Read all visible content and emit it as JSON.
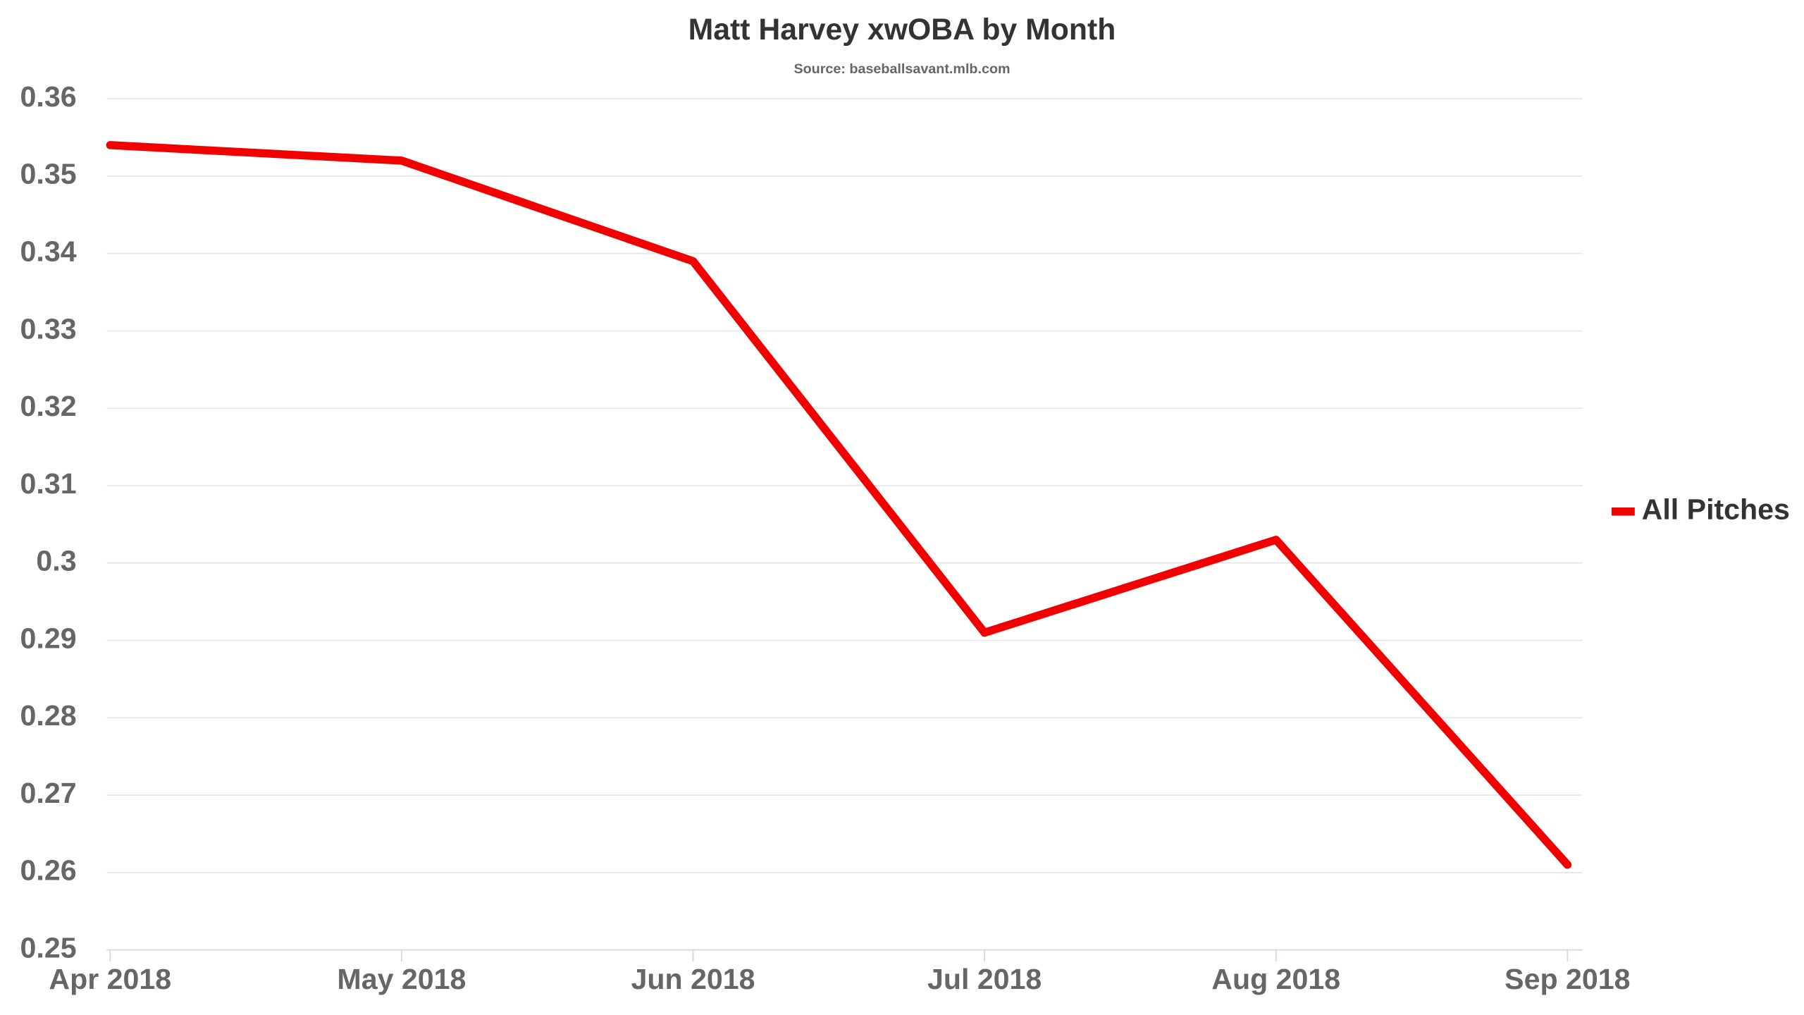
{
  "chart_data": {
    "type": "line",
    "title": "Matt Harvey xwOBA by Month",
    "subtitle": "Source: baseballsavant.mlb.com",
    "categories": [
      "Apr 2018",
      "May 2018",
      "Jun 2018",
      "Jul 2018",
      "Aug 2018",
      "Sep 2018"
    ],
    "series": [
      {
        "name": "All Pitches",
        "color": "#f20000",
        "values": [
          0.354,
          0.352,
          0.339,
          0.291,
          0.303,
          0.261
        ]
      }
    ],
    "ylim": [
      0.25,
      0.36
    ],
    "yticks": [
      0.25,
      0.26,
      0.27,
      0.28,
      0.29,
      0.3,
      0.31,
      0.32,
      0.33,
      0.34,
      0.35,
      0.36
    ],
    "grid": true,
    "legend": "right"
  }
}
